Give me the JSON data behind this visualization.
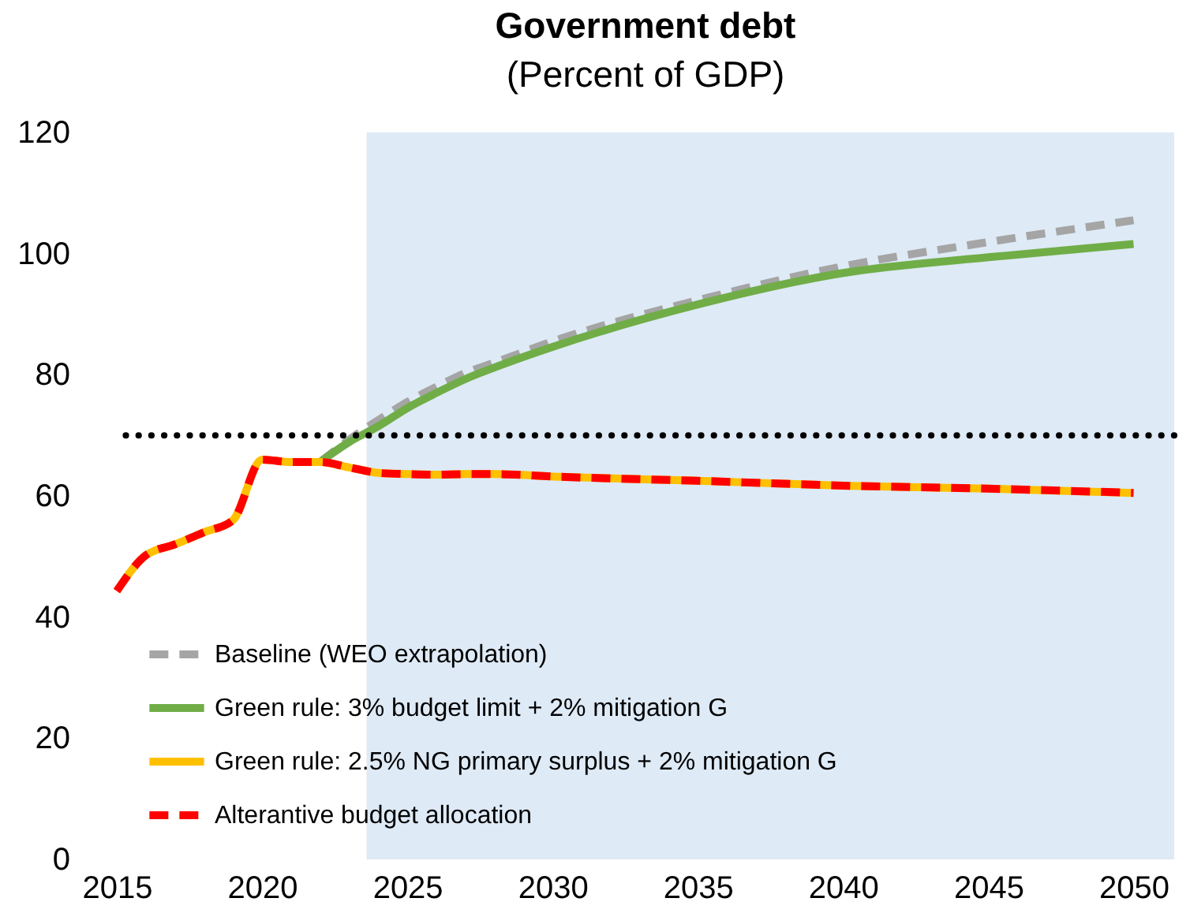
{
  "chart_data": {
    "type": "line",
    "title": "Government debt",
    "subtitle": "(Percent of GDP)",
    "x": [
      2015,
      2016,
      2017,
      2018,
      2019,
      2020,
      2021,
      2022,
      2023,
      2024,
      2025,
      2026,
      2027,
      2028,
      2030,
      2035,
      2040,
      2045,
      2050
    ],
    "series": [
      {
        "name": "Baseline (WEO extrapolation)",
        "color": "#a5a5a5",
        "line_style": "dashed",
        "values": [
          null,
          null,
          null,
          null,
          null,
          null,
          null,
          65.6,
          69.3,
          72.5,
          75.5,
          78,
          80.3,
          82,
          85.5,
          92.3,
          97.9,
          101.9,
          105.5
        ]
      },
      {
        "name": "Green rule: 3% budget limit + 2% mitigation G",
        "color": "#70ad47",
        "line_style": "solid",
        "values": [
          null,
          null,
          null,
          null,
          null,
          null,
          null,
          65.6,
          68.9,
          71.5,
          74.5,
          77,
          79.3,
          81.2,
          84.6,
          91.6,
          96.8,
          99.4,
          101.6
        ]
      },
      {
        "name": "Green rule: 2.5% NG primary surplus + 2% mitigation G",
        "color": "#ffc000",
        "line_style": "solid",
        "values": [
          44.3,
          50.2,
          52,
          54,
          56,
          66,
          65.6,
          65.6,
          64.7,
          63.8,
          63.6,
          63.5,
          63.6,
          63.6,
          63.2,
          62.5,
          61.7,
          61.2,
          60.5
        ]
      },
      {
        "name": "Alterantive budget allocation",
        "color": "#ff0000",
        "line_style": "dashed",
        "values": [
          44.3,
          50.2,
          52,
          54,
          56,
          66,
          65.6,
          65.6,
          64.7,
          63.8,
          63.6,
          63.5,
          63.6,
          63.6,
          63.2,
          62.5,
          61.7,
          61.2,
          60.5
        ]
      }
    ],
    "xlim": [
      2015,
      2051.4
    ],
    "xticks": [
      2015,
      2020,
      2025,
      2030,
      2035,
      2040,
      2045,
      2050
    ],
    "ylim": [
      0,
      120
    ],
    "yticks": [
      0,
      20,
      40,
      60,
      80,
      100,
      120
    ],
    "ref_lines": [
      {
        "axis": "y",
        "value": 70,
        "color": "#000000",
        "line_style": "dotted"
      }
    ],
    "bands": [
      {
        "axis": "x",
        "from": 2023.6,
        "to": 2051.4,
        "color": "#deeaf6"
      }
    ],
    "grid": false,
    "legend": "bottom left"
  }
}
